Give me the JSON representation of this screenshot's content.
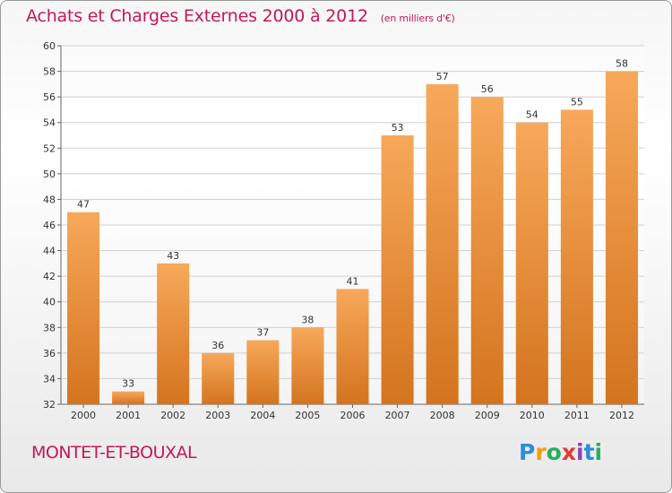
{
  "header": {
    "title": "Achats et Charges Externes 2000 à 2012",
    "subtitle": "(en milliers d'€)"
  },
  "footer": {
    "commune": "MONTET-ET-BOUXAL",
    "brand": [
      "P",
      "r",
      "o",
      "x",
      "i",
      "t",
      "i"
    ],
    "brand_colors": [
      "#2e8ed6",
      "#f39c12",
      "#27ae60",
      "#e53935",
      "#8e44ad",
      "#2e8ed6",
      "#27ae60"
    ]
  },
  "colors": {
    "title": "#c2185b",
    "bar_light": "#f7a85a",
    "bar_dark": "#d4741e",
    "grid": "#cfcfcf"
  },
  "chart_data": {
    "type": "bar",
    "categories": [
      "2000",
      "2001",
      "2002",
      "2003",
      "2004",
      "2005",
      "2006",
      "2007",
      "2008",
      "2009",
      "2010",
      "2011",
      "2012"
    ],
    "values": [
      47,
      33,
      43,
      36,
      37,
      38,
      41,
      53,
      57,
      56,
      54,
      55,
      58
    ],
    "ylim": [
      32,
      60
    ],
    "yticks": [
      32,
      34,
      36,
      38,
      40,
      42,
      44,
      46,
      48,
      50,
      52,
      54,
      56,
      58,
      60
    ],
    "grid": true
  }
}
